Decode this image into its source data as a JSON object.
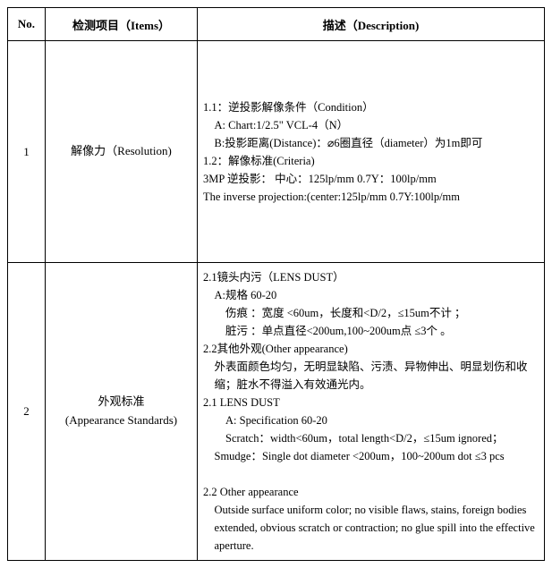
{
  "table": {
    "columns": {
      "no": "No.",
      "items": "检测项目（Items）",
      "description": "描述（Description)"
    },
    "rows": [
      {
        "no": "1",
        "item_cn": "解像力（Resolution)",
        "desc": {
          "l1": "1.1：逆投影解像条件（Condition）",
          "l2": "A: Chart:1/2.5\" VCL-4（N）",
          "l3": "B:投影距离(Distance)：⌀6圈直径（diameter）为1m即可",
          "l4": "1.2：解像标准(Criteria)",
          "l5": "3MP 逆投影： 中心：125lp/mm    0.7Y：100lp/mm",
          "l6": "The inverse projection:(center:125lp/mm   0.7Y:100lp/mm"
        }
      },
      {
        "no": "2",
        "item_cn": "外观标准",
        "item_en": "(Appearance Standards)",
        "desc": {
          "l1": "2.1镜头内污（LENS DUST）",
          "l2": "A:规格 60-20",
          "l3": "伤痕 ：宽度 <60um，长度和<D/2，≤15um不计 ；",
          "l4": "脏污 ：单点直径<200um,100~200um点 ≤3个 。",
          "l5": "2.2其他外观(Other appearance)",
          "l6": "外表面颜色均匀，无明显缺陷、污渍、异物伸出、明显划伤和收缩；脏水不得溢入有效通光内。",
          "l7": "2.1 LENS DUST",
          "l8": "A: Specification 60-20",
          "l9": "Scratch：width<60um，total length<D/2，≤15um ignored；",
          "l10": "Smudge：Single dot diameter <200um，100~200um dot  ≤3 pcs",
          "l11": " ",
          "l12": "2.2 Other appearance",
          "l13": "Outside surface uniform color; no visible flaws, stains, foreign bodies extended, obvious scratch or contraction; no glue spill into the effective aperture."
        }
      }
    ]
  }
}
